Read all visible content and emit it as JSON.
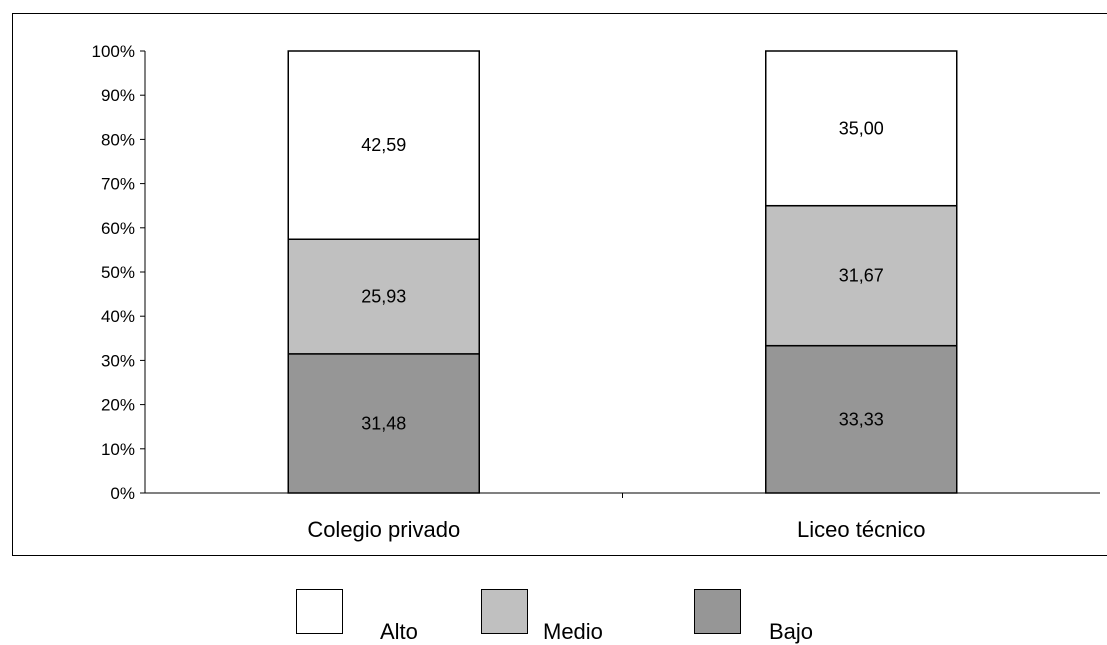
{
  "chart_data": {
    "type": "bar",
    "stacked": true,
    "percent": true,
    "categories": [
      "Colegio privado",
      "Liceo técnico"
    ],
    "series": [
      {
        "name": "Bajo",
        "values": [
          31.48,
          33.33
        ],
        "labels": [
          "31,48",
          "33,33"
        ],
        "color": "#969696"
      },
      {
        "name": "Medio",
        "values": [
          25.93,
          31.67
        ],
        "labels": [
          "25,93",
          "31,67"
        ],
        "color": "#c0c0c0"
      },
      {
        "name": "Alto",
        "values": [
          42.59,
          35.0
        ],
        "labels": [
          "42,59",
          "35,00"
        ],
        "color": "#ffffff"
      }
    ],
    "ylim": [
      0,
      100
    ],
    "yticks": [
      "0%",
      "10%",
      "20%",
      "30%",
      "40%",
      "50%",
      "60%",
      "70%",
      "80%",
      "90%",
      "100%"
    ],
    "legend_position": "bottom",
    "grid": false
  },
  "legend": {
    "items": [
      {
        "label": "Alto",
        "color": "#ffffff"
      },
      {
        "label": "Medio",
        "color": "#c0c0c0"
      },
      {
        "label": "Bajo",
        "color": "#969696"
      }
    ]
  }
}
